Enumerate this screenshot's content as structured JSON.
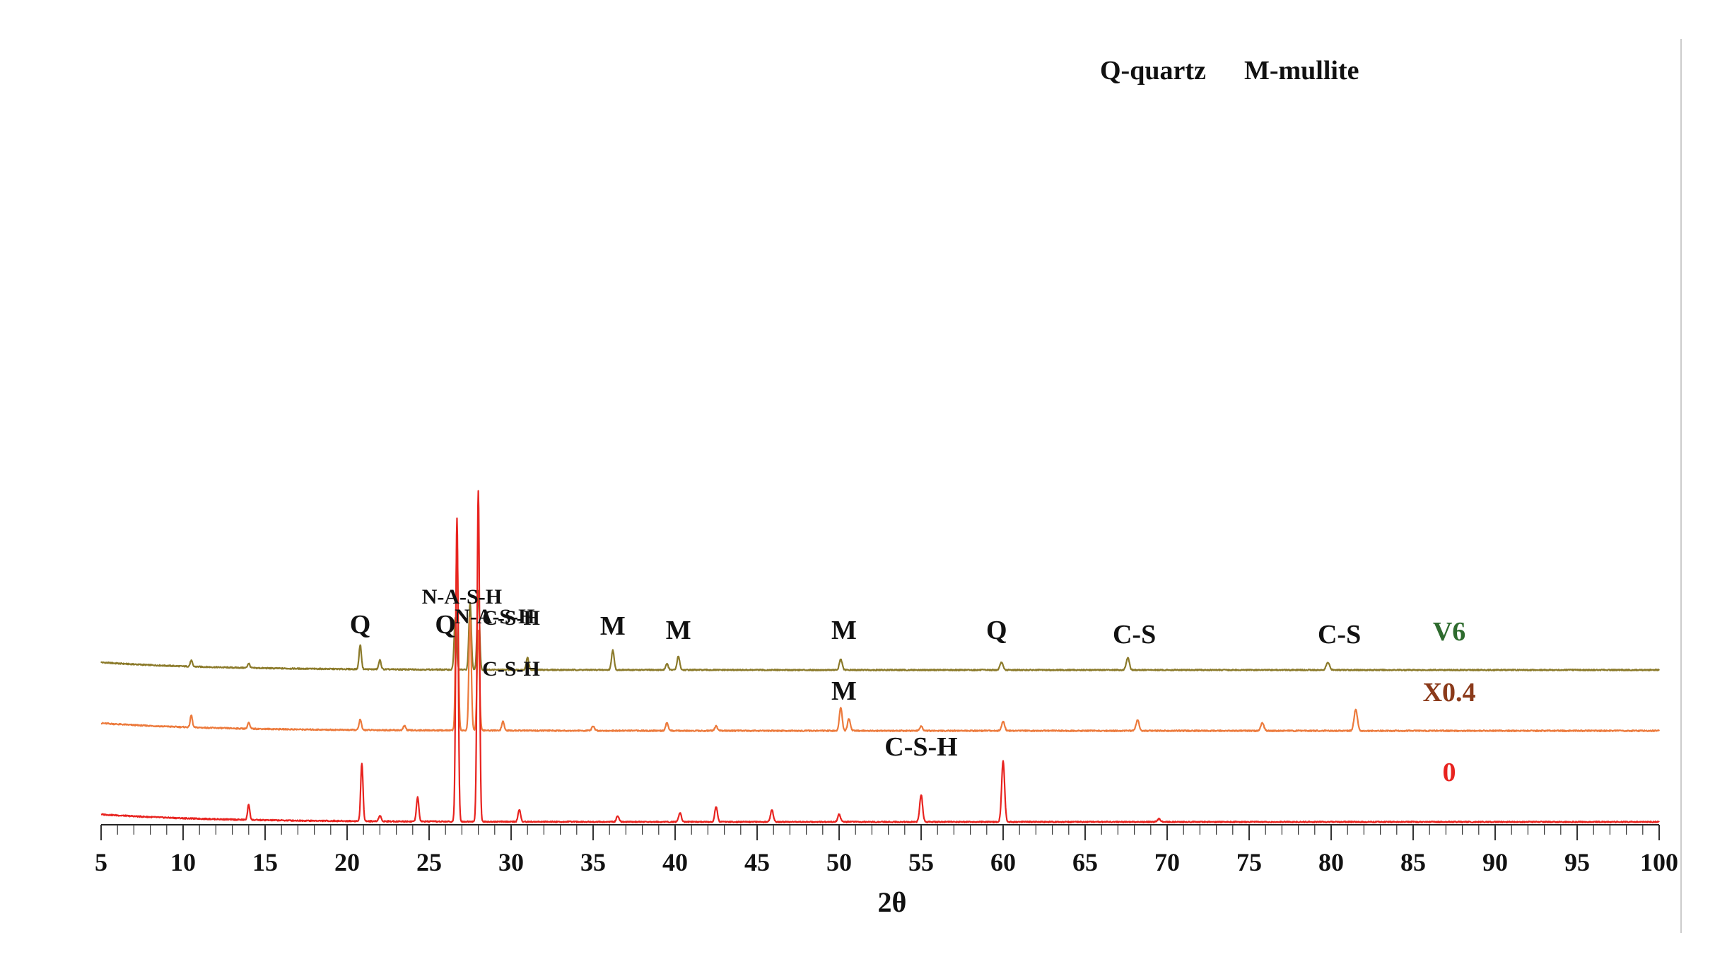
{
  "chart_data": {
    "type": "line",
    "xlabel": "2θ",
    "ylabel": "",
    "xlim": [
      5,
      100
    ],
    "xticks": [
      5,
      10,
      15,
      20,
      25,
      30,
      35,
      40,
      45,
      50,
      55,
      60,
      65,
      70,
      75,
      80,
      85,
      90,
      95,
      100
    ],
    "grid": false,
    "y_axis_visible": false,
    "legend_note": [
      "Q-quartz",
      "M-mullite"
    ],
    "series": [
      {
        "name": "V6",
        "color": "#8b7a2a",
        "label_color": "#2e6b2e",
        "baseline": 0.5,
        "peaks": [
          [
            10.5,
            0.02
          ],
          [
            14.0,
            0.015
          ],
          [
            20.8,
            0.08
          ],
          [
            22.0,
            0.03
          ],
          [
            26.6,
            0.17
          ],
          [
            27.5,
            0.22
          ],
          [
            28.0,
            0.26
          ],
          [
            31.0,
            0.04
          ],
          [
            36.2,
            0.065
          ],
          [
            39.5,
            0.02
          ],
          [
            40.2,
            0.045
          ],
          [
            50.1,
            0.035
          ],
          [
            59.9,
            0.025
          ],
          [
            67.6,
            0.04
          ],
          [
            79.8,
            0.025
          ]
        ],
        "peak_labels": [
          {
            "x": 20.8,
            "text": "Q"
          },
          {
            "x": 26.0,
            "text": "Q"
          },
          {
            "x": 27.0,
            "text": "N-A-S-H"
          },
          {
            "x": 30.0,
            "text": "C-S-H"
          },
          {
            "x": 36.2,
            "text": "M"
          },
          {
            "x": 40.2,
            "text": "M"
          },
          {
            "x": 50.3,
            "text": "M"
          },
          {
            "x": 59.6,
            "text": "Q"
          },
          {
            "x": 68.0,
            "text": "C-S"
          },
          {
            "x": 80.5,
            "text": "C-S"
          }
        ]
      },
      {
        "name": "X0.4",
        "color": "#ec7a3c",
        "label_color": "#8b3a1a",
        "baseline": 0.3,
        "peaks": [
          [
            10.5,
            0.04
          ],
          [
            14.0,
            0.02
          ],
          [
            20.8,
            0.035
          ],
          [
            23.5,
            0.015
          ],
          [
            26.7,
            0.63
          ],
          [
            27.5,
            0.37
          ],
          [
            28.0,
            0.33
          ],
          [
            29.5,
            0.03
          ],
          [
            35.0,
            0.015
          ],
          [
            39.5,
            0.025
          ],
          [
            42.5,
            0.015
          ],
          [
            50.1,
            0.075
          ],
          [
            50.6,
            0.04
          ],
          [
            55.0,
            0.015
          ],
          [
            60.0,
            0.03
          ],
          [
            68.2,
            0.035
          ],
          [
            75.8,
            0.025
          ],
          [
            81.5,
            0.07
          ]
        ],
        "peak_labels": [
          {
            "x": 29.0,
            "text": "N-A-S-H"
          },
          {
            "x": 30.0,
            "text": "C-S-H"
          },
          {
            "x": 50.3,
            "text": "M"
          }
        ]
      },
      {
        "name": "0",
        "color": "#e8231f",
        "label_color": "#e8231f",
        "baseline": 0.0,
        "peaks": [
          [
            14.0,
            0.05
          ],
          [
            20.9,
            0.19
          ],
          [
            22.0,
            0.02
          ],
          [
            24.3,
            0.08
          ],
          [
            26.7,
            1.0
          ],
          [
            28.0,
            1.09
          ],
          [
            30.5,
            0.04
          ],
          [
            36.5,
            0.02
          ],
          [
            40.3,
            0.03
          ],
          [
            42.5,
            0.05
          ],
          [
            45.9,
            0.04
          ],
          [
            50.0,
            0.025
          ],
          [
            55.0,
            0.09
          ],
          [
            60.0,
            0.2
          ],
          [
            69.5,
            0.01
          ]
        ],
        "peak_labels": [
          {
            "x": 55.0,
            "text": "C-S-H"
          }
        ]
      }
    ]
  }
}
